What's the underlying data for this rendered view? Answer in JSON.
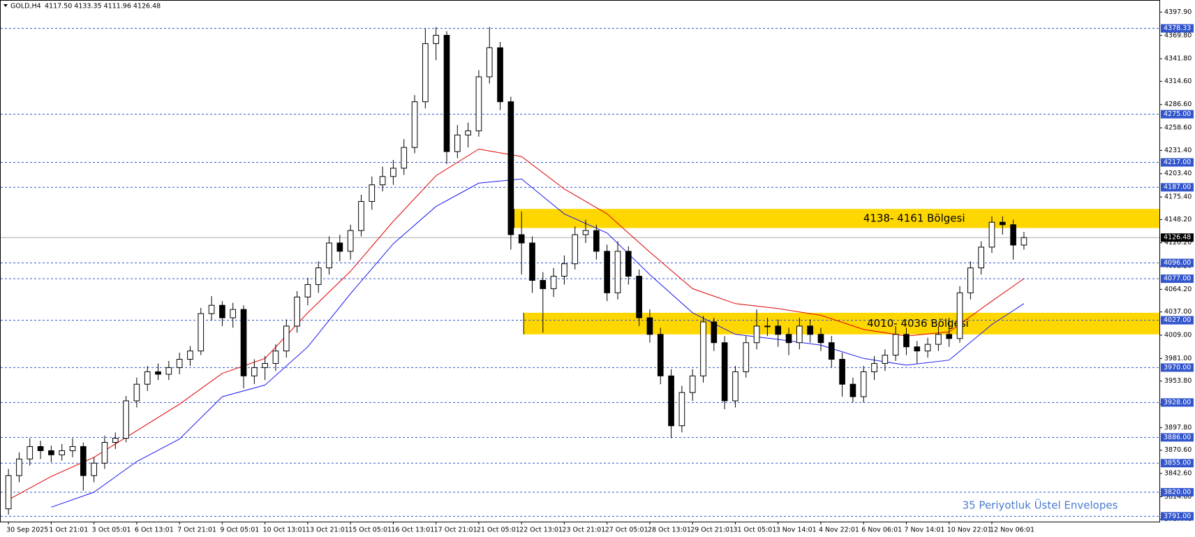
{
  "chart_data": {
    "type": "candlestick",
    "header": {
      "symbol": "GOLD,H4",
      "quote": "4117.50 4133.35 4111.96 4126.48"
    },
    "open": [
      3800,
      3840,
      3860,
      3875,
      3870,
      3865,
      3870,
      3875,
      3840,
      3855,
      3880,
      3885,
      3930,
      3950,
      3965,
      3962,
      3970,
      3980,
      3990,
      4035,
      4045,
      4030,
      4040,
      3960,
      3970,
      3975,
      3990,
      4020,
      4055,
      4070,
      4090,
      4120,
      4110,
      4135,
      4170,
      4190,
      4200,
      4210,
      4235,
      4290,
      4360,
      4370,
      4230,
      4250,
      4255,
      4320,
      4355,
      4290,
      4130,
      4120,
      4075,
      4065,
      4080,
      4095,
      4130,
      4135,
      4110,
      4060,
      4110,
      4080,
      4030,
      4010,
      3960,
      3900,
      3940,
      3960,
      4025,
      4000,
      3930,
      3965,
      4000,
      4020,
      4020,
      4010,
      4000,
      4020,
      4010,
      4000,
      3980,
      3950,
      3935,
      3965,
      3975,
      3985,
      4010,
      3995,
      3990,
      3998,
      4010,
      4005,
      4060,
      4090,
      4115,
      4145,
      4142,
      4117.5
    ],
    "high": [
      3848,
      3868,
      3885,
      3882,
      3876,
      3878,
      3885,
      3880,
      3862,
      3888,
      3892,
      3936,
      3958,
      3972,
      3975,
      3978,
      3988,
      3996,
      4042,
      4056,
      4050,
      4048,
      4045,
      3980,
      3984,
      3998,
      4028,
      4062,
      4078,
      4098,
      4128,
      4130,
      4142,
      4178,
      4200,
      4212,
      4220,
      4245,
      4298,
      4378,
      4380,
      4375,
      4262,
      4265,
      4328,
      4380,
      4362,
      4296,
      4158,
      4128,
      4085,
      4090,
      4105,
      4140,
      4148,
      4142,
      4118,
      4122,
      4116,
      4088,
      4040,
      4018,
      3968,
      3948,
      3968,
      4032,
      4030,
      4008,
      3972,
      4008,
      4040,
      4030,
      4028,
      4018,
      4030,
      4028,
      4018,
      4008,
      3988,
      3958,
      3972,
      3984,
      3992,
      4020,
      4018,
      4002,
      4006,
      4020,
      4030,
      4068,
      4098,
      4122,
      4152,
      4152,
      4148,
      4133.35
    ],
    "low": [
      3793,
      3832,
      3852,
      3860,
      3856,
      3858,
      3862,
      3822,
      3832,
      3848,
      3872,
      3880,
      3922,
      3942,
      3955,
      3955,
      3962,
      3972,
      3985,
      4027,
      4020,
      4018,
      3945,
      3950,
      3955,
      3966,
      3982,
      4012,
      4045,
      4060,
      4082,
      4098,
      4100,
      4128,
      4160,
      4182,
      4190,
      4202,
      4228,
      4282,
      4340,
      4215,
      4222,
      4235,
      4248,
      4312,
      4280,
      4112,
      4082,
      4060,
      4012,
      4055,
      4070,
      4088,
      4120,
      4100,
      4050,
      4052,
      4070,
      4020,
      4000,
      3950,
      3885,
      3892,
      3930,
      3952,
      3990,
      3920,
      3922,
      3958,
      3992,
      4008,
      3995,
      3985,
      3992,
      4000,
      3990,
      3970,
      3935,
      3928,
      3928,
      3955,
      3966,
      3978,
      3985,
      3975,
      3982,
      3990,
      3995,
      4000,
      4052,
      4082,
      4108,
      4130,
      4100,
      4111.96
    ],
    "close": [
      3840,
      3860,
      3875,
      3870,
      3865,
      3870,
      3875,
      3840,
      3855,
      3880,
      3885,
      3930,
      3950,
      3965,
      3962,
      3970,
      3980,
      3990,
      4035,
      4045,
      4030,
      4040,
      3960,
      3970,
      3975,
      3990,
      4020,
      4055,
      4070,
      4090,
      4120,
      4110,
      4135,
      4170,
      4190,
      4200,
      4210,
      4235,
      4290,
      4360,
      4370,
      4230,
      4250,
      4255,
      4320,
      4355,
      4290,
      4130,
      4120,
      4075,
      4065,
      4080,
      4095,
      4130,
      4135,
      4110,
      4060,
      4110,
      4080,
      4030,
      4010,
      3960,
      3900,
      3940,
      3960,
      4025,
      4000,
      3930,
      3965,
      4000,
      4020,
      4020,
      4010,
      4000,
      4020,
      4010,
      4000,
      3980,
      3950,
      3935,
      3965,
      3975,
      3985,
      4010,
      3995,
      3990,
      3998,
      4010,
      4005,
      4060,
      4090,
      4115,
      4145,
      4142,
      4117.5,
      4126.48
    ],
    "xticks": [
      {
        "value": 0,
        "label": "30 Sep 2025"
      },
      {
        "value": 4,
        "label": "1 Oct 21:01"
      },
      {
        "value": 8,
        "label": "3 Oct 05:01"
      },
      {
        "value": 12,
        "label": "6 Oct 13:01"
      },
      {
        "value": 16,
        "label": "7 Oct 21:01"
      },
      {
        "value": 20,
        "label": "9 Oct 05:01"
      },
      {
        "value": 24,
        "label": "10 Oct 13:01"
      },
      {
        "value": 28,
        "label": "13 Oct 21:01"
      },
      {
        "value": 32,
        "label": "15 Oct 05:01"
      },
      {
        "value": 36,
        "label": "16 Oct 13:01"
      },
      {
        "value": 40,
        "label": "17 Oct 21:01"
      },
      {
        "value": 44,
        "label": "21 Oct 05:01"
      },
      {
        "value": 48,
        "label": "22 Oct 13:01"
      },
      {
        "value": 52,
        "label": "23 Oct 21:01"
      },
      {
        "value": 56,
        "label": "27 Oct 05:01"
      },
      {
        "value": 60,
        "label": "28 Oct 13:01"
      },
      {
        "value": 64,
        "label": "29 Oct 21:01"
      },
      {
        "value": 68,
        "label": "31 Oct 05:01"
      },
      {
        "value": 72,
        "label": "3 Nov 14:01"
      },
      {
        "value": 76,
        "label": "4 Nov 22:01"
      },
      {
        "value": 80,
        "label": "6 Nov 06:01"
      },
      {
        "value": 84,
        "label": "7 Nov 14:01"
      },
      {
        "value": 88,
        "label": "10 Nov 22:01"
      },
      {
        "value": 92,
        "label": "12 Nov 06:01"
      }
    ],
    "xlim": [
      -0.4,
      108
    ],
    "ylim": [
      3784.6,
      4404.9
    ],
    "yticks": [
      {
        "value": 4397.9,
        "label": "4397.90"
      },
      {
        "value": 4369.8,
        "label": "4369.80"
      },
      {
        "value": 4341.8,
        "label": "4341.80"
      },
      {
        "value": 4314.6,
        "label": "4314.60"
      },
      {
        "value": 4286.6,
        "label": "4286.60"
      },
      {
        "value": 4258.6,
        "label": "4258.60"
      },
      {
        "value": 4231.4,
        "label": "4231.40"
      },
      {
        "value": 4203.4,
        "label": "4203.40"
      },
      {
        "value": 4175.4,
        "label": "4175.40"
      },
      {
        "value": 4148.2,
        "label": "4148.20"
      },
      {
        "value": 4120.2,
        "label": "4120.20"
      },
      {
        "value": 4092.2,
        "label": "4092.20"
      },
      {
        "value": 4064.2,
        "label": "4064.20"
      },
      {
        "value": 4037,
        "label": "4037.00"
      },
      {
        "value": 4009,
        "label": "4009.00"
      },
      {
        "value": 3981,
        "label": "3981.00"
      },
      {
        "value": 3953.8,
        "label": "3953.80"
      },
      {
        "value": 3925.8,
        "label": "3925.80"
      },
      {
        "value": 3897.8,
        "label": "3897.80"
      },
      {
        "value": 3870.6,
        "label": "3870.60"
      },
      {
        "value": 3842.6,
        "label": "3842.60"
      },
      {
        "value": 3814.6,
        "label": "3814.60"
      },
      {
        "value": 3787.4,
        "label": "3787.40"
      }
    ],
    "levels": [
      {
        "value": 4378.33,
        "label": "4378.33"
      },
      {
        "value": 4275,
        "label": "4275.00"
      },
      {
        "value": 4217,
        "label": "4217.00"
      },
      {
        "value": 4187,
        "label": "4187.00"
      },
      {
        "value": 4096,
        "label": "4096.00"
      },
      {
        "value": 4077,
        "label": "4077.00"
      },
      {
        "value": 4027,
        "label": "4027.00"
      },
      {
        "value": 3970,
        "label": "3970.00"
      },
      {
        "value": 3928,
        "label": "3928.00"
      },
      {
        "value": 3886,
        "label": "3886.00"
      },
      {
        "value": 3855,
        "label": "3855.00"
      },
      {
        "value": 3820,
        "label": "3820.00"
      },
      {
        "value": 3791,
        "label": "3791.00"
      }
    ],
    "level_color": "#3355cc",
    "current_price": {
      "value": 4126.48,
      "label": "4126.48"
    },
    "zones": [
      {
        "low": 4138,
        "high": 4161,
        "start": 47.3,
        "label": "4138- 4161 Bölgesi"
      },
      {
        "low": 4010,
        "high": 4036,
        "start": 48.2,
        "label": "4010- 4036 Bölgesi"
      }
    ],
    "zone_color": "#ffd700",
    "envelope_x": [
      0,
      4,
      8,
      12,
      16,
      20,
      24,
      28,
      32,
      36,
      40,
      44,
      48,
      52,
      56,
      60,
      64,
      68,
      72,
      76,
      80,
      84,
      88,
      92,
      95
    ],
    "envelope_upper": {
      "color": "#e00000",
      "values": [
        3811,
        3839,
        3862,
        3894,
        3926,
        3963,
        3981,
        4036,
        4086,
        4146,
        4201,
        4233,
        4224,
        4185,
        4155,
        4109,
        4065,
        4047,
        4041,
        4033,
        4016,
        4008,
        4013,
        4050,
        4077
      ]
    },
    "envelope_lower": {
      "color": "#1a1aee",
      "values": [
        null,
        3802,
        3820,
        3857,
        3884,
        3935,
        3949,
        3995,
        4059,
        4119,
        4164,
        4192,
        4197,
        4155,
        4132,
        4082,
        4036,
        4010,
        4004,
        3997,
        3981,
        3973,
        3979,
        4022,
        4047
      ]
    },
    "note": "35 Periyotluk Üstel Envelopes"
  }
}
